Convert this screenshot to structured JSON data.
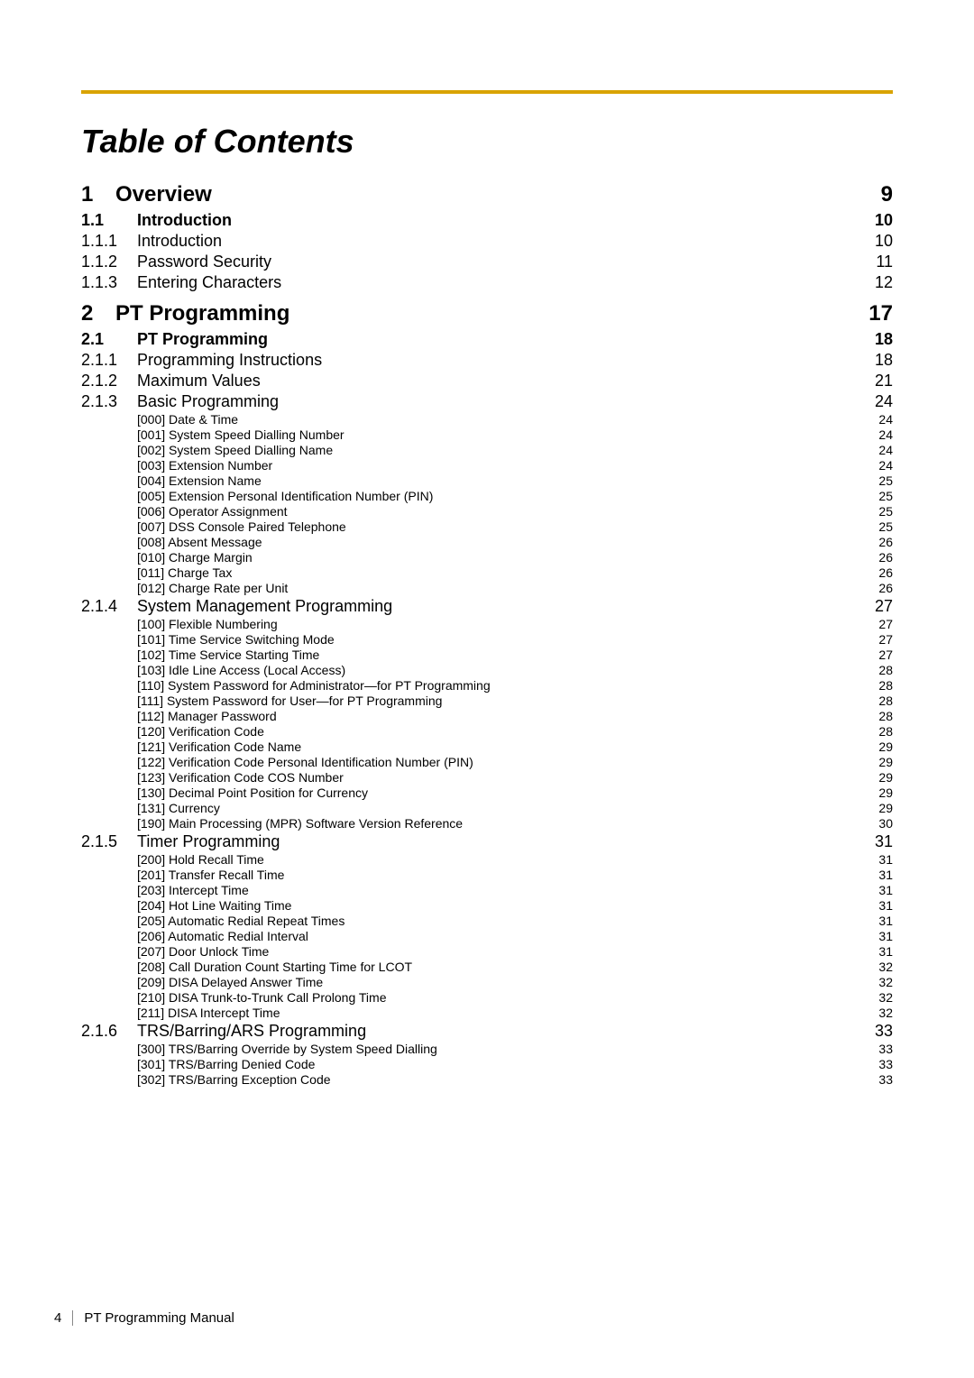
{
  "title": "Table of Contents",
  "footer": {
    "page": "4",
    "doc": "PT Programming Manual"
  },
  "entries": [
    {
      "level": 1,
      "num": "1",
      "label": "Overview",
      "page": "9"
    },
    {
      "level": 2,
      "num": "1.1",
      "label": "Introduction ",
      "page": "10"
    },
    {
      "level": 3,
      "num": "1.1.1",
      "label": "Introduction ",
      "page": "10"
    },
    {
      "level": 3,
      "num": "1.1.2",
      "label": "Password Security",
      "page": "11"
    },
    {
      "level": 3,
      "num": "1.1.3",
      "label": "Entering Characters ",
      "page": "12"
    },
    {
      "level": 1,
      "num": "2",
      "label": "PT Programming",
      "page": "17"
    },
    {
      "level": 2,
      "num": "2.1",
      "label": "PT Programming ",
      "page": "18"
    },
    {
      "level": 3,
      "num": "2.1.1",
      "label": "Programming Instructions ",
      "page": "18"
    },
    {
      "level": 3,
      "num": "2.1.2",
      "label": "Maximum Values",
      "page": "21"
    },
    {
      "level": 3,
      "num": "2.1.3",
      "label": "Basic Programming",
      "page": "24"
    },
    {
      "level": 4,
      "label": "[000] Date & Time",
      "page": "24"
    },
    {
      "level": 4,
      "label": "[001] System Speed Dialling Number",
      "page": "24"
    },
    {
      "level": 4,
      "label": "[002] System Speed Dialling Name",
      "page": "24"
    },
    {
      "level": 4,
      "label": "[003] Extension Number",
      "page": "24"
    },
    {
      "level": 4,
      "label": "[004] Extension Name ",
      "page": "25"
    },
    {
      "level": 4,
      "label": "[005] Extension Personal Identification Number (PIN) ",
      "page": "25"
    },
    {
      "level": 4,
      "label": "[006] Operator Assignment",
      "page": "25"
    },
    {
      "level": 4,
      "label": "[007] DSS Console Paired Telephone ",
      "page": "25"
    },
    {
      "level": 4,
      "label": "[008] Absent Message",
      "page": "26"
    },
    {
      "level": 4,
      "label": "[010] Charge Margin",
      "page": "26"
    },
    {
      "level": 4,
      "label": "[011] Charge Tax ",
      "page": "26"
    },
    {
      "level": 4,
      "label": "[012] Charge Rate per Unit",
      "page": "26"
    },
    {
      "level": 3,
      "num": "2.1.4",
      "label": "System Management Programming",
      "page": "27"
    },
    {
      "level": 4,
      "label": "[100] Flexible Numbering",
      "page": "27"
    },
    {
      "level": 4,
      "label": "[101] Time Service Switching Mode ",
      "page": "27"
    },
    {
      "level": 4,
      "label": "[102] Time Service Starting Time ",
      "page": "27"
    },
    {
      "level": 4,
      "label": "[103] Idle Line Access (Local Access)",
      "page": "28"
    },
    {
      "level": 4,
      "label": "[110] System Password for Administrator—for PT Programming",
      "page": "28"
    },
    {
      "level": 4,
      "label": "[111] System Password for User—for PT Programming",
      "page": "28"
    },
    {
      "level": 4,
      "label": "[112] Manager Password",
      "page": "28"
    },
    {
      "level": 4,
      "label": "[120] Verification Code ",
      "page": "28"
    },
    {
      "level": 4,
      "label": "[121] Verification Code Name",
      "page": "29"
    },
    {
      "level": 4,
      "label": "[122] Verification Code Personal Identification Number (PIN)",
      "page": "29"
    },
    {
      "level": 4,
      "label": "[123] Verification Code COS Number",
      "page": "29"
    },
    {
      "level": 4,
      "label": "[130] Decimal Point Position for Currency ",
      "page": "29"
    },
    {
      "level": 4,
      "label": "[131] Currency ",
      "page": "29"
    },
    {
      "level": 4,
      "label": "[190] Main Processing (MPR) Software Version Reference ",
      "page": "30"
    },
    {
      "level": 3,
      "num": "2.1.5",
      "label": "Timer Programming ",
      "page": "31"
    },
    {
      "level": 4,
      "label": "[200] Hold Recall Time ",
      "page": "31"
    },
    {
      "level": 4,
      "label": "[201] Transfer Recall Time",
      "page": "31"
    },
    {
      "level": 4,
      "label": "[203] Intercept Time",
      "page": "31"
    },
    {
      "level": 4,
      "label": "[204] Hot Line Waiting Time ",
      "page": "31"
    },
    {
      "level": 4,
      "label": "[205] Automatic Redial Repeat Times",
      "page": "31"
    },
    {
      "level": 4,
      "label": "[206] Automatic Redial Interval",
      "page": "31"
    },
    {
      "level": 4,
      "label": "[207] Door Unlock Time",
      "page": "31"
    },
    {
      "level": 4,
      "label": "[208] Call Duration Count Starting Time for LCOT ",
      "page": "32"
    },
    {
      "level": 4,
      "label": "[209] DISA Delayed Answer Time ",
      "page": "32"
    },
    {
      "level": 4,
      "label": "[210] DISA Trunk-to-Trunk Call Prolong Time",
      "page": "32"
    },
    {
      "level": 4,
      "label": "[211] DISA Intercept Time ",
      "page": "32"
    },
    {
      "level": 3,
      "num": "2.1.6",
      "label": "TRS/Barring/ARS Programming ",
      "page": "33"
    },
    {
      "level": 4,
      "label": "[300] TRS/Barring Override by System Speed Dialling ",
      "page": "33"
    },
    {
      "level": 4,
      "label": "[301] TRS/Barring Denied Code",
      "page": "33"
    },
    {
      "level": 4,
      "label": "[302] TRS/Barring Exception Code ",
      "page": "33"
    }
  ]
}
